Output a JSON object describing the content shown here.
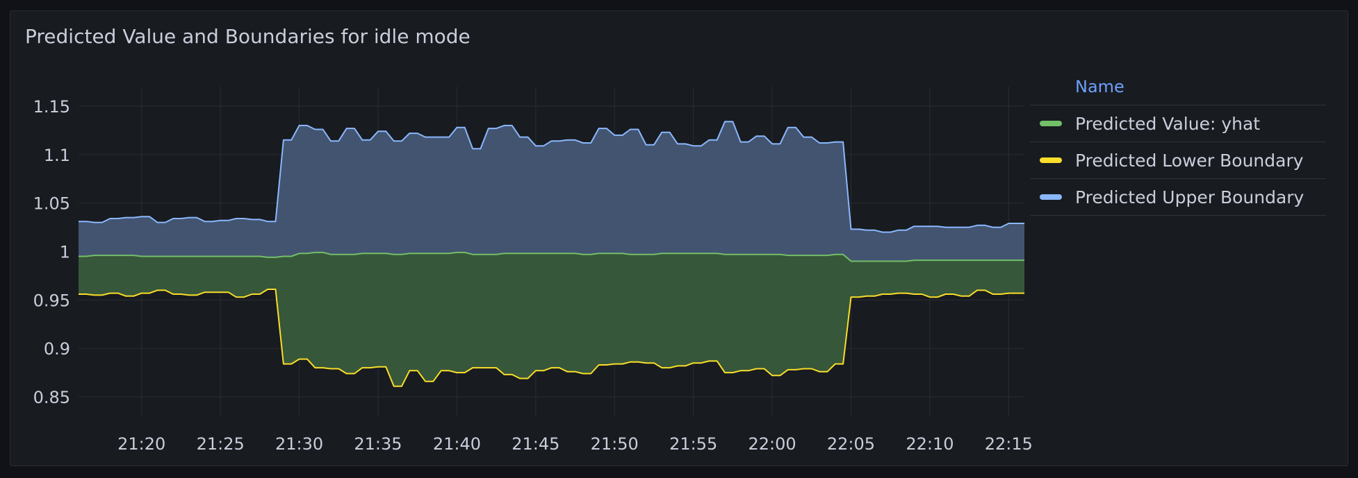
{
  "panel": {
    "title": "Predicted Value and Boundaries for idle mode"
  },
  "legend": {
    "header": "Name",
    "items": [
      {
        "label": "Predicted Value: yhat",
        "color": "#73bf69"
      },
      {
        "label": "Predicted Lower Boundary",
        "color": "#fade2a"
      },
      {
        "label": "Predicted Upper Boundary",
        "color": "#8ab8ff"
      }
    ]
  },
  "chart_data": {
    "type": "area",
    "title": "Predicted Value and Boundaries for idle mode",
    "xlabel": "",
    "ylabel": "",
    "xlim": [
      "21:16",
      "22:16"
    ],
    "ylim": [
      0.83,
      1.17
    ],
    "xticks": [
      "21:20",
      "21:25",
      "21:30",
      "21:35",
      "21:40",
      "21:45",
      "21:50",
      "21:55",
      "22:00",
      "22:05",
      "22:10",
      "22:15"
    ],
    "yticks": [
      "0.85",
      "0.9",
      "0.95",
      "1",
      "1.05",
      "1.1",
      "1.15"
    ],
    "yticks_values": [
      0.85,
      0.9,
      0.95,
      1.0,
      1.05,
      1.1,
      1.15
    ],
    "grid": true,
    "legend_position": "right",
    "x": [
      "21:16:00",
      "21:16:30",
      "21:17:00",
      "21:17:30",
      "21:18:00",
      "21:18:30",
      "21:19:00",
      "21:19:30",
      "21:20:00",
      "21:20:30",
      "21:21:00",
      "21:21:30",
      "21:22:00",
      "21:22:30",
      "21:23:00",
      "21:23:30",
      "21:24:00",
      "21:24:30",
      "21:25:00",
      "21:25:30",
      "21:26:00",
      "21:26:30",
      "21:27:00",
      "21:27:30",
      "21:28:00",
      "21:28:30",
      "21:29:00",
      "21:29:30",
      "21:30:00",
      "21:30:30",
      "21:31:00",
      "21:31:30",
      "21:32:00",
      "21:32:30",
      "21:33:00",
      "21:33:30",
      "21:34:00",
      "21:34:30",
      "21:35:00",
      "21:35:30",
      "21:36:00",
      "21:36:30",
      "21:37:00",
      "21:37:30",
      "21:38:00",
      "21:38:30",
      "21:39:00",
      "21:39:30",
      "21:40:00",
      "21:40:30",
      "21:41:00",
      "21:41:30",
      "21:42:00",
      "21:42:30",
      "21:43:00",
      "21:43:30",
      "21:44:00",
      "21:44:30",
      "21:45:00",
      "21:45:30",
      "21:46:00",
      "21:46:30",
      "21:47:00",
      "21:47:30",
      "21:48:00",
      "21:48:30",
      "21:49:00",
      "21:49:30",
      "21:50:00",
      "21:50:30",
      "21:51:00",
      "21:51:30",
      "21:52:00",
      "21:52:30",
      "21:53:00",
      "21:53:30",
      "21:54:00",
      "21:54:30",
      "21:55:00",
      "21:55:30",
      "21:56:00",
      "21:56:30",
      "21:57:00",
      "21:57:30",
      "21:58:00",
      "21:58:30",
      "21:59:00",
      "21:59:30",
      "22:00:00",
      "22:00:30",
      "22:01:00",
      "22:01:30",
      "22:02:00",
      "22:02:30",
      "22:03:00",
      "22:03:30",
      "22:04:00",
      "22:04:30",
      "22:05:00",
      "22:05:30",
      "22:06:00",
      "22:06:30",
      "22:07:00",
      "22:07:30",
      "22:08:00",
      "22:08:30",
      "22:09:00",
      "22:09:30",
      "22:10:00",
      "22:10:30",
      "22:11:00",
      "22:11:30",
      "22:12:00",
      "22:12:30",
      "22:13:00",
      "22:13:30",
      "22:14:00",
      "22:14:30",
      "22:15:00",
      "22:15:30",
      "22:16:00"
    ],
    "series": [
      {
        "name": "Predicted Upper Boundary",
        "color": "#8ab8ff",
        "fill": "#435470",
        "values": [
          1.031,
          1.031,
          1.03,
          1.03,
          1.034,
          1.034,
          1.035,
          1.035,
          1.036,
          1.036,
          1.03,
          1.03,
          1.034,
          1.034,
          1.035,
          1.035,
          1.031,
          1.031,
          1.032,
          1.032,
          1.034,
          1.034,
          1.033,
          1.033,
          1.031,
          1.031,
          1.115,
          1.115,
          1.13,
          1.13,
          1.126,
          1.126,
          1.114,
          1.114,
          1.127,
          1.127,
          1.115,
          1.115,
          1.124,
          1.124,
          1.114,
          1.114,
          1.122,
          1.122,
          1.118,
          1.118,
          1.118,
          1.118,
          1.128,
          1.128,
          1.106,
          1.106,
          1.127,
          1.127,
          1.13,
          1.13,
          1.118,
          1.118,
          1.109,
          1.109,
          1.114,
          1.114,
          1.115,
          1.115,
          1.112,
          1.112,
          1.127,
          1.127,
          1.12,
          1.12,
          1.126,
          1.126,
          1.11,
          1.11,
          1.123,
          1.123,
          1.111,
          1.111,
          1.109,
          1.109,
          1.115,
          1.115,
          1.134,
          1.134,
          1.113,
          1.113,
          1.119,
          1.119,
          1.111,
          1.111,
          1.128,
          1.128,
          1.118,
          1.118,
          1.112,
          1.112,
          1.113,
          1.113,
          1.023,
          1.023,
          1.022,
          1.022,
          1.02,
          1.02,
          1.022,
          1.022,
          1.026,
          1.026,
          1.026,
          1.026,
          1.025,
          1.025,
          1.025,
          1.025,
          1.027,
          1.027,
          1.025,
          1.025,
          1.029,
          1.029,
          1.029
        ]
      },
      {
        "name": "Predicted Value: yhat",
        "color": "#73bf69",
        "fill": "#37573a",
        "values": [
          0.995,
          0.995,
          0.996,
          0.996,
          0.996,
          0.996,
          0.996,
          0.996,
          0.995,
          0.995,
          0.995,
          0.995,
          0.995,
          0.995,
          0.995,
          0.995,
          0.995,
          0.995,
          0.995,
          0.995,
          0.995,
          0.995,
          0.995,
          0.995,
          0.994,
          0.994,
          0.995,
          0.995,
          0.998,
          0.998,
          0.999,
          0.999,
          0.997,
          0.997,
          0.997,
          0.997,
          0.998,
          0.998,
          0.998,
          0.998,
          0.997,
          0.997,
          0.998,
          0.998,
          0.998,
          0.998,
          0.998,
          0.998,
          0.999,
          0.999,
          0.997,
          0.997,
          0.997,
          0.997,
          0.998,
          0.998,
          0.998,
          0.998,
          0.998,
          0.998,
          0.998,
          0.998,
          0.998,
          0.998,
          0.997,
          0.997,
          0.998,
          0.998,
          0.998,
          0.998,
          0.997,
          0.997,
          0.997,
          0.997,
          0.998,
          0.998,
          0.998,
          0.998,
          0.998,
          0.998,
          0.998,
          0.998,
          0.997,
          0.997,
          0.997,
          0.997,
          0.997,
          0.997,
          0.997,
          0.997,
          0.996,
          0.996,
          0.996,
          0.996,
          0.996,
          0.996,
          0.997,
          0.997,
          0.99,
          0.99,
          0.99,
          0.99,
          0.99,
          0.99,
          0.99,
          0.99,
          0.991,
          0.991,
          0.991,
          0.991,
          0.991,
          0.991,
          0.991,
          0.991,
          0.991,
          0.991,
          0.991,
          0.991,
          0.991,
          0.991,
          0.991
        ]
      },
      {
        "name": "Predicted Lower Boundary",
        "color": "#fade2a",
        "fill": "none",
        "values": [
          0.956,
          0.956,
          0.955,
          0.955,
          0.957,
          0.957,
          0.954,
          0.954,
          0.957,
          0.957,
          0.96,
          0.96,
          0.956,
          0.956,
          0.955,
          0.955,
          0.958,
          0.958,
          0.958,
          0.958,
          0.953,
          0.953,
          0.956,
          0.956,
          0.961,
          0.961,
          0.884,
          0.884,
          0.889,
          0.889,
          0.88,
          0.88,
          0.879,
          0.879,
          0.874,
          0.874,
          0.88,
          0.88,
          0.881,
          0.881,
          0.861,
          0.861,
          0.877,
          0.877,
          0.866,
          0.866,
          0.877,
          0.877,
          0.875,
          0.875,
          0.88,
          0.88,
          0.88,
          0.88,
          0.873,
          0.873,
          0.869,
          0.869,
          0.877,
          0.877,
          0.88,
          0.88,
          0.876,
          0.876,
          0.874,
          0.874,
          0.883,
          0.883,
          0.884,
          0.884,
          0.886,
          0.886,
          0.885,
          0.885,
          0.88,
          0.88,
          0.882,
          0.882,
          0.885,
          0.885,
          0.887,
          0.887,
          0.875,
          0.875,
          0.877,
          0.877,
          0.879,
          0.879,
          0.872,
          0.872,
          0.878,
          0.878,
          0.879,
          0.879,
          0.876,
          0.876,
          0.884,
          0.884,
          0.953,
          0.953,
          0.954,
          0.954,
          0.956,
          0.956,
          0.957,
          0.957,
          0.956,
          0.956,
          0.953,
          0.953,
          0.956,
          0.956,
          0.954,
          0.954,
          0.96,
          0.96,
          0.956,
          0.956,
          0.957,
          0.957,
          0.957
        ]
      }
    ]
  }
}
